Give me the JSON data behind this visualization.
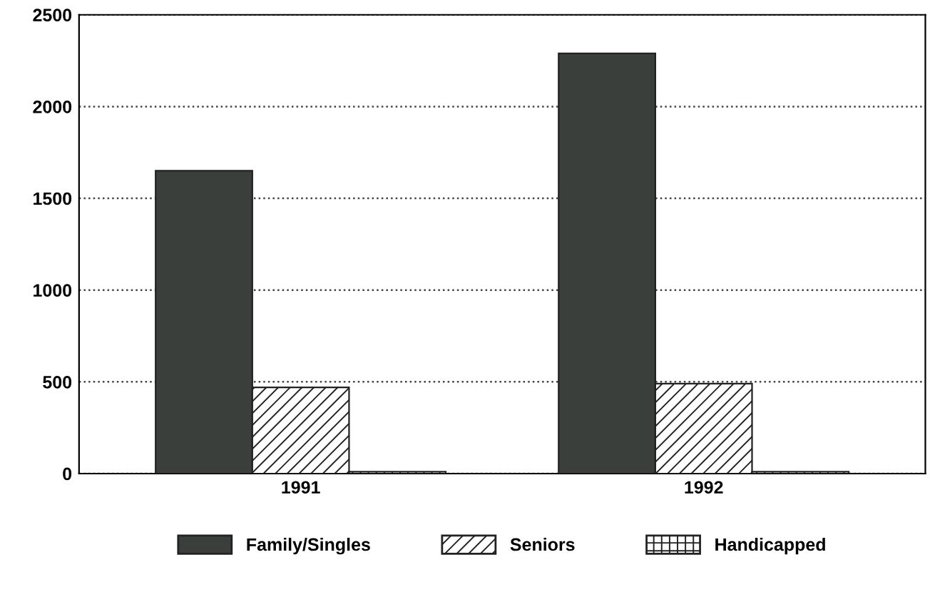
{
  "chart_data": {
    "type": "bar",
    "categories": [
      "1991",
      "1992"
    ],
    "series": [
      {
        "name": "Family/Singles",
        "color": "#3a3f3c",
        "values": [
          1650,
          2290
        ]
      },
      {
        "name": "Seniors",
        "color": "#222222",
        "values": [
          470,
          490
        ]
      },
      {
        "name": "Handicapped",
        "color": "#222222",
        "values": [
          10,
          10
        ]
      }
    ],
    "ylim": [
      0,
      2500
    ],
    "yticks": [
      0,
      500,
      1000,
      1500,
      2000,
      2500
    ],
    "grid": "y",
    "legend": "bottom"
  }
}
